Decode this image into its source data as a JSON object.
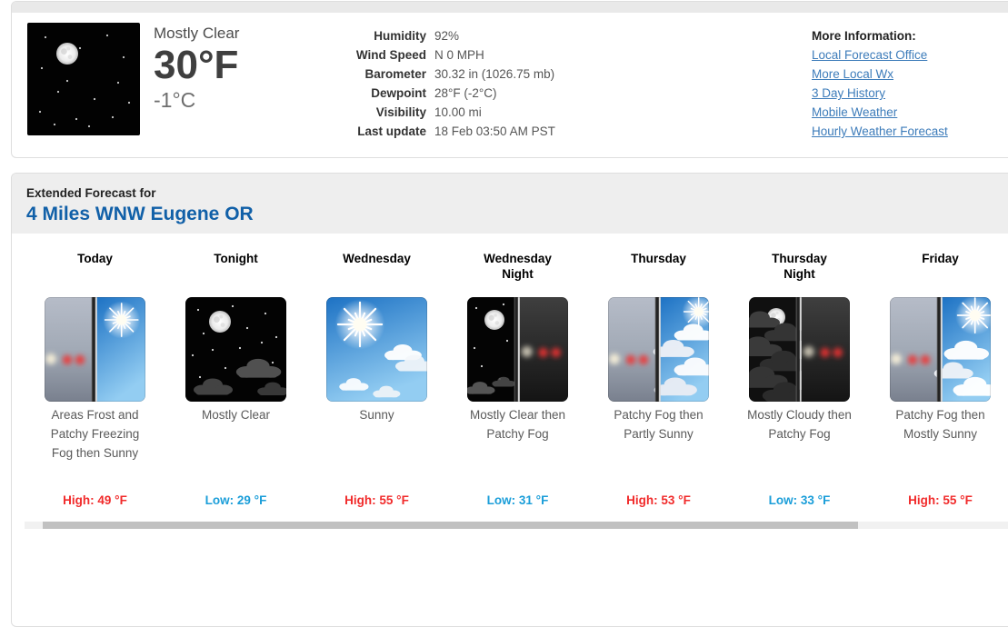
{
  "current": {
    "condition": "Mostly Clear",
    "temp_f": "30°F",
    "temp_c": "-1°C",
    "icon": "clear-night",
    "details": [
      {
        "label": "Humidity",
        "value": "92%"
      },
      {
        "label": "Wind Speed",
        "value": "N 0 MPH"
      },
      {
        "label": "Barometer",
        "value": "30.32 in (1026.75 mb)"
      },
      {
        "label": "Dewpoint",
        "value": "28°F (-2°C)"
      },
      {
        "label": "Visibility",
        "value": "10.00 mi"
      },
      {
        "label": "Last update",
        "value": "18 Feb 03:50 AM PST"
      }
    ]
  },
  "more_information": {
    "title": "More Information:",
    "links": [
      "Local Forecast Office",
      "More Local Wx",
      "3 Day History",
      "Mobile Weather",
      "Hourly Weather Forecast"
    ]
  },
  "extended": {
    "heading": "Extended Forecast for",
    "location": "4 Miles WNW Eugene OR",
    "periods": [
      {
        "name": "Today",
        "icon": "fog-then-sunny",
        "desc": "Areas Frost and Patchy Freezing Fog then Sunny",
        "temp": "High: 49 °F",
        "temp_type": "high"
      },
      {
        "name": "Tonight",
        "icon": "mostly-clear-night",
        "desc": "Mostly Clear",
        "temp": "Low: 29 °F",
        "temp_type": "low"
      },
      {
        "name": "Wednesday",
        "icon": "sunny",
        "desc": "Sunny",
        "temp": "High: 55 °F",
        "temp_type": "high"
      },
      {
        "name": "Wednesday Night",
        "icon": "clear-then-fog-night",
        "desc": "Mostly Clear then Patchy Fog",
        "temp": "Low: 31 °F",
        "temp_type": "low"
      },
      {
        "name": "Thursday",
        "icon": "fog-then-partly-sunny",
        "desc": "Patchy Fog then Partly Sunny",
        "temp": "High: 53 °F",
        "temp_type": "high"
      },
      {
        "name": "Thursday Night",
        "icon": "cloudy-then-fog-night",
        "desc": "Mostly Cloudy then Patchy Fog",
        "temp": "Low: 33 °F",
        "temp_type": "low"
      },
      {
        "name": "Friday",
        "icon": "fog-then-mostly-sunny",
        "desc": "Patchy Fog then Mostly Sunny",
        "temp": "High: 55 °F",
        "temp_type": "high"
      }
    ]
  },
  "colors": {
    "high_temp": "#f12b2b",
    "low_temp": "#1b9ed9",
    "link": "#3d7cba",
    "location_title": "#1160a8",
    "panel_header": "#e9e9e9",
    "ext_header_bg": "#eeeeee"
  }
}
